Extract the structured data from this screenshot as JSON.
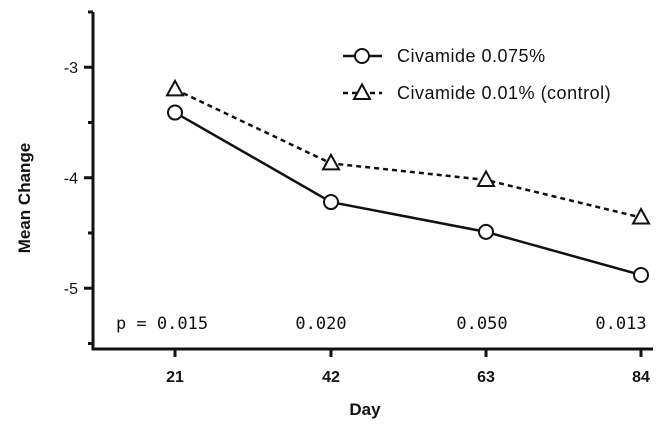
{
  "chart_data": {
    "type": "line",
    "title": "",
    "xlabel": "Day",
    "ylabel": "Mean Change",
    "x": [
      21,
      42,
      63,
      84
    ],
    "x_tick_labels": [
      "21",
      "42",
      "63",
      "84"
    ],
    "y_tick_labels": [
      "-3",
      "-4",
      "-5"
    ],
    "y_ticks": [
      -3,
      -4,
      -5
    ],
    "ylim": [
      -5.55,
      -2.5
    ],
    "grid": false,
    "legend_position": "top-right",
    "series": [
      {
        "name": "Civamide 0.075%",
        "marker": "circle",
        "line_style": "solid",
        "color": "#111111",
        "values": [
          -3.41,
          -4.22,
          -4.49,
          -4.88
        ]
      },
      {
        "name": "Civamide 0.01% (control)",
        "marker": "triangle",
        "line_style": "dashed",
        "color": "#111111",
        "values": [
          -3.2,
          -3.87,
          -4.02,
          -4.36
        ]
      }
    ],
    "annotations": [
      "p = 0.015",
      "0.020",
      "0.050",
      "0.013"
    ]
  }
}
